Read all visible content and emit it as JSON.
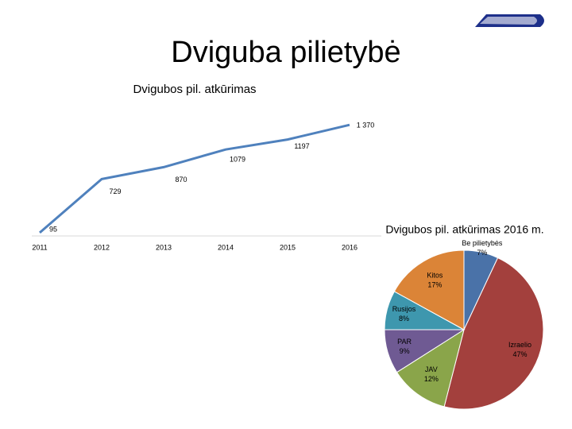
{
  "slide_title": "Dviguba pilietybė",
  "chart_data": [
    {
      "type": "line",
      "title": "Dvigubos pil. atkūrimas",
      "categories": [
        "2011",
        "2012",
        "2013",
        "2014",
        "2015",
        "2016"
      ],
      "values": [
        95,
        729,
        870,
        1079,
        1197,
        1370
      ],
      "value_labels": [
        "95",
        "729",
        "870",
        "1079",
        "1197",
        "1 370"
      ],
      "color": "#4f81bd",
      "ylim": [
        0,
        1400
      ]
    },
    {
      "type": "pie",
      "title": "Dvigubos pil. atkūrimas 2016 m.",
      "categories": [
        "Be pilietybės",
        "Izraelio",
        "JAV",
        "PAR",
        "Rusijos",
        "Kitos"
      ],
      "values": [
        7,
        47,
        12,
        9,
        8,
        17
      ],
      "value_labels": [
        "7%",
        "47%",
        "12%",
        "9%",
        "8%",
        "17%"
      ],
      "colors": [
        "#4a72a8",
        "#a3403d",
        "#8aa54a",
        "#6f5a93",
        "#3e97ae",
        "#db8437"
      ]
    }
  ]
}
